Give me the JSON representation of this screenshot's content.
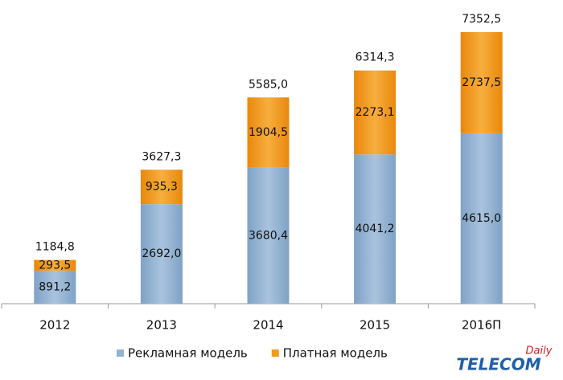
{
  "chart_data": {
    "type": "stacked-bar",
    "categories": [
      "2012",
      "2013",
      "2014",
      "2015",
      "2016П"
    ],
    "series": [
      {
        "name": "Рекламная модель",
        "color": "#93b3d3",
        "values": [
          891.2,
          2692.0,
          3680.4,
          4041.2,
          4615.0
        ],
        "value_labels": [
          "891,2",
          "2692,0",
          "3680,4",
          "4041,2",
          "4615,0"
        ]
      },
      {
        "name": "Платная модель",
        "color": "#f29a1e",
        "values": [
          293.5,
          935.3,
          1904.5,
          2273.1,
          2737.5
        ],
        "value_labels": [
          "293,5",
          "935,3",
          "1904,5",
          "2273,1",
          "2737,5"
        ]
      }
    ],
    "totals": [
      1184.8,
      3627.3,
      5585.0,
      6314.3,
      7352.5
    ],
    "total_labels": [
      "1184,8",
      "3627,3",
      "5585,0",
      "6314,3",
      "7352,5"
    ],
    "legend": "bottom"
  },
  "logo": {
    "main": "TELECOM",
    "sub": "Daily"
  }
}
